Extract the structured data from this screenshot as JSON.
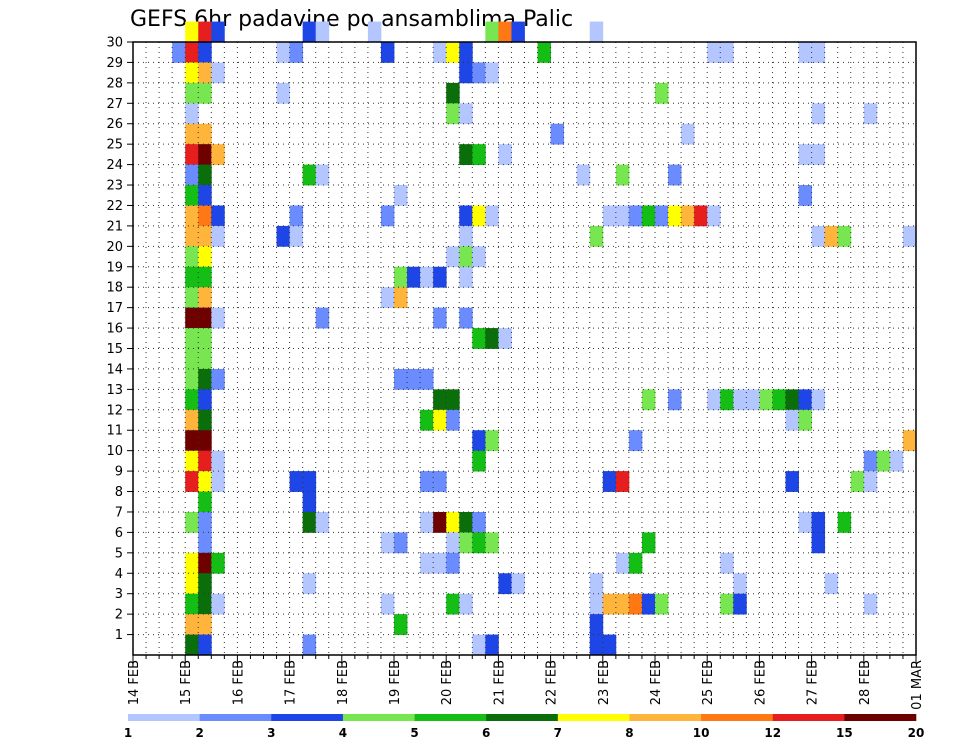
{
  "chart_data": {
    "type": "heatmap",
    "title": "GEFS 6hr padavine po ansamblima Palic",
    "y_ticks": [
      "1",
      "2",
      "3",
      "4",
      "5",
      "6",
      "7",
      "8",
      "9",
      "10",
      "11",
      "12",
      "13",
      "14",
      "15",
      "16",
      "17",
      "18",
      "19",
      "20",
      "21",
      "22",
      "23",
      "24",
      "25",
      "26",
      "27",
      "28",
      "29",
      "30"
    ],
    "x_labels": [
      "14 FEB",
      "15 FEB",
      "16 FEB",
      "17 FEB",
      "18 FEB",
      "19 FEB",
      "20 FEB",
      "21 FEB",
      "22 FEB",
      "23 FEB",
      "24 FEB",
      "25 FEB",
      "26 FEB",
      "27 FEB",
      "28 FEB",
      "01 MAR"
    ],
    "steps_per_day": 4,
    "total_steps": 60,
    "legend_labels": [
      "1",
      "2",
      "3",
      "4",
      "5",
      "6",
      "7",
      "8",
      "10",
      "12",
      "15",
      "20"
    ],
    "palette": [
      "#b4c6ff",
      "#6a8cff",
      "#1e46e6",
      "#78e650",
      "#14be14",
      "#0a6e0a",
      "#ffff00",
      "#ffb43c",
      "#ff7814",
      "#e61e1e",
      "#6e0000"
    ],
    "data_note": "cells: [member, time step (0 = 14 FEB 00z, 6h each), color class 0-10]",
    "cells": [
      [
        30,
        4,
        6
      ],
      [
        30,
        5,
        9
      ],
      [
        30,
        6,
        2
      ],
      [
        30,
        13,
        2
      ],
      [
        30,
        14,
        0
      ],
      [
        30,
        18,
        0
      ],
      [
        30,
        27,
        3
      ],
      [
        30,
        28,
        8
      ],
      [
        30,
        29,
        2
      ],
      [
        30,
        35,
        0
      ],
      [
        29,
        3,
        1
      ],
      [
        29,
        4,
        9
      ],
      [
        29,
        5,
        2
      ],
      [
        29,
        11,
        0
      ],
      [
        29,
        12,
        1
      ],
      [
        29,
        19,
        2
      ],
      [
        29,
        23,
        0
      ],
      [
        29,
        24,
        6
      ],
      [
        29,
        25,
        2
      ],
      [
        29,
        31,
        4
      ],
      [
        29,
        44,
        0
      ],
      [
        29,
        45,
        0
      ],
      [
        29,
        51,
        0
      ],
      [
        29,
        52,
        0
      ],
      [
        28,
        4,
        6
      ],
      [
        28,
        5,
        7
      ],
      [
        28,
        6,
        0
      ],
      [
        28,
        25,
        2
      ],
      [
        28,
        26,
        1
      ],
      [
        28,
        27,
        0
      ],
      [
        27,
        4,
        3
      ],
      [
        27,
        5,
        3
      ],
      [
        27,
        11,
        0
      ],
      [
        27,
        24,
        5
      ],
      [
        27,
        40,
        3
      ],
      [
        26,
        4,
        0
      ],
      [
        26,
        24,
        3
      ],
      [
        26,
        25,
        0
      ],
      [
        26,
        52,
        0
      ],
      [
        26,
        56,
        0
      ],
      [
        25,
        4,
        7
      ],
      [
        25,
        5,
        7
      ],
      [
        25,
        32,
        1
      ],
      [
        25,
        42,
        0
      ],
      [
        24,
        4,
        9
      ],
      [
        24,
        5,
        10
      ],
      [
        24,
        6,
        7
      ],
      [
        24,
        25,
        5
      ],
      [
        24,
        26,
        4
      ],
      [
        24,
        28,
        0
      ],
      [
        24,
        51,
        0
      ],
      [
        24,
        52,
        0
      ],
      [
        23,
        4,
        1
      ],
      [
        23,
        5,
        5
      ],
      [
        23,
        13,
        4
      ],
      [
        23,
        14,
        0
      ],
      [
        23,
        34,
        0
      ],
      [
        23,
        37,
        3
      ],
      [
        23,
        41,
        1
      ],
      [
        22,
        4,
        4
      ],
      [
        22,
        5,
        2
      ],
      [
        22,
        20,
        0
      ],
      [
        22,
        51,
        1
      ],
      [
        21,
        4,
        7
      ],
      [
        21,
        5,
        8
      ],
      [
        21,
        6,
        2
      ],
      [
        21,
        12,
        1
      ],
      [
        21,
        19,
        1
      ],
      [
        21,
        25,
        2
      ],
      [
        21,
        26,
        6
      ],
      [
        21,
        27,
        0
      ],
      [
        21,
        36,
        0
      ],
      [
        21,
        37,
        0
      ],
      [
        21,
        38,
        1
      ],
      [
        21,
        39,
        4
      ],
      [
        21,
        40,
        1
      ],
      [
        21,
        41,
        6
      ],
      [
        21,
        42,
        7
      ],
      [
        21,
        43,
        9
      ],
      [
        21,
        44,
        0
      ],
      [
        20,
        4,
        7
      ],
      [
        20,
        5,
        7
      ],
      [
        20,
        6,
        0
      ],
      [
        20,
        11,
        2
      ],
      [
        20,
        12,
        0
      ],
      [
        20,
        25,
        0
      ],
      [
        20,
        35,
        3
      ],
      [
        20,
        52,
        0
      ],
      [
        20,
        53,
        7
      ],
      [
        20,
        54,
        3
      ],
      [
        20,
        59,
        0
      ],
      [
        19,
        4,
        3
      ],
      [
        19,
        5,
        6
      ],
      [
        19,
        24,
        0
      ],
      [
        19,
        25,
        3
      ],
      [
        19,
        26,
        0
      ],
      [
        18,
        4,
        4
      ],
      [
        18,
        5,
        4
      ],
      [
        18,
        20,
        3
      ],
      [
        18,
        21,
        2
      ],
      [
        18,
        22,
        0
      ],
      [
        18,
        23,
        2
      ],
      [
        18,
        25,
        0
      ],
      [
        17,
        4,
        3
      ],
      [
        17,
        5,
        7
      ],
      [
        17,
        19,
        0
      ],
      [
        17,
        20,
        7
      ],
      [
        16,
        4,
        10
      ],
      [
        16,
        5,
        10
      ],
      [
        16,
        6,
        0
      ],
      [
        16,
        14,
        1
      ],
      [
        16,
        23,
        1
      ],
      [
        16,
        25,
        1
      ],
      [
        15,
        4,
        3
      ],
      [
        15,
        5,
        3
      ],
      [
        15,
        26,
        4
      ],
      [
        15,
        27,
        5
      ],
      [
        15,
        28,
        0
      ],
      [
        14,
        4,
        3
      ],
      [
        14,
        5,
        3
      ],
      [
        13,
        4,
        3
      ],
      [
        13,
        5,
        5
      ],
      [
        13,
        6,
        1
      ],
      [
        13,
        20,
        1
      ],
      [
        13,
        21,
        1
      ],
      [
        13,
        22,
        1
      ],
      [
        12,
        4,
        4
      ],
      [
        12,
        5,
        2
      ],
      [
        12,
        23,
        5
      ],
      [
        12,
        24,
        5
      ],
      [
        12,
        39,
        3
      ],
      [
        12,
        41,
        1
      ],
      [
        12,
        44,
        0
      ],
      [
        12,
        45,
        4
      ],
      [
        12,
        46,
        0
      ],
      [
        12,
        47,
        0
      ],
      [
        12,
        48,
        3
      ],
      [
        12,
        49,
        4
      ],
      [
        12,
        50,
        5
      ],
      [
        12,
        51,
        2
      ],
      [
        12,
        52,
        0
      ],
      [
        11,
        4,
        7
      ],
      [
        11,
        5,
        5
      ],
      [
        11,
        22,
        4
      ],
      [
        11,
        23,
        6
      ],
      [
        11,
        24,
        1
      ],
      [
        11,
        50,
        0
      ],
      [
        11,
        51,
        3
      ],
      [
        10,
        4,
        10
      ],
      [
        10,
        5,
        10
      ],
      [
        10,
        26,
        2
      ],
      [
        10,
        27,
        3
      ],
      [
        10,
        38,
        1
      ],
      [
        10,
        59,
        7
      ],
      [
        9,
        4,
        6
      ],
      [
        9,
        5,
        9
      ],
      [
        9,
        6,
        0
      ],
      [
        9,
        26,
        4
      ],
      [
        9,
        56,
        1
      ],
      [
        9,
        57,
        3
      ],
      [
        9,
        58,
        0
      ],
      [
        8,
        4,
        9
      ],
      [
        8,
        5,
        6
      ],
      [
        8,
        6,
        0
      ],
      [
        8,
        12,
        2
      ],
      [
        8,
        13,
        2
      ],
      [
        8,
        22,
        1
      ],
      [
        8,
        23,
        1
      ],
      [
        8,
        36,
        2
      ],
      [
        8,
        37,
        9
      ],
      [
        8,
        50,
        2
      ],
      [
        8,
        55,
        3
      ],
      [
        8,
        56,
        0
      ],
      [
        7,
        5,
        4
      ],
      [
        7,
        13,
        2
      ],
      [
        6,
        4,
        3
      ],
      [
        6,
        5,
        1
      ],
      [
        6,
        13,
        5
      ],
      [
        6,
        14,
        0
      ],
      [
        6,
        22,
        0
      ],
      [
        6,
        23,
        10
      ],
      [
        6,
        24,
        6
      ],
      [
        6,
        25,
        5
      ],
      [
        6,
        26,
        1
      ],
      [
        6,
        51,
        0
      ],
      [
        6,
        52,
        2
      ],
      [
        6,
        54,
        4
      ],
      [
        5,
        5,
        1
      ],
      [
        5,
        19,
        0
      ],
      [
        5,
        20,
        1
      ],
      [
        5,
        24,
        0
      ],
      [
        5,
        25,
        3
      ],
      [
        5,
        26,
        4
      ],
      [
        5,
        27,
        3
      ],
      [
        5,
        39,
        4
      ],
      [
        5,
        52,
        2
      ],
      [
        4,
        4,
        6
      ],
      [
        4,
        5,
        10
      ],
      [
        4,
        6,
        4
      ],
      [
        4,
        22,
        0
      ],
      [
        4,
        23,
        0
      ],
      [
        4,
        24,
        1
      ],
      [
        4,
        37,
        0
      ],
      [
        4,
        38,
        4
      ],
      [
        4,
        45,
        0
      ],
      [
        3,
        4,
        6
      ],
      [
        3,
        5,
        5
      ],
      [
        3,
        13,
        0
      ],
      [
        3,
        28,
        2
      ],
      [
        3,
        29,
        0
      ],
      [
        3,
        35,
        0
      ],
      [
        3,
        46,
        0
      ],
      [
        3,
        53,
        0
      ],
      [
        2,
        4,
        4
      ],
      [
        2,
        5,
        5
      ],
      [
        2,
        6,
        0
      ],
      [
        2,
        19,
        0
      ],
      [
        2,
        24,
        4
      ],
      [
        2,
        25,
        0
      ],
      [
        2,
        35,
        0
      ],
      [
        2,
        36,
        7
      ],
      [
        2,
        37,
        7
      ],
      [
        2,
        38,
        8
      ],
      [
        2,
        39,
        2
      ],
      [
        2,
        40,
        3
      ],
      [
        2,
        45,
        3
      ],
      [
        2,
        46,
        2
      ],
      [
        2,
        56,
        0
      ],
      [
        1,
        4,
        7
      ],
      [
        1,
        5,
        7
      ],
      [
        1,
        20,
        4
      ],
      [
        1,
        35,
        2
      ],
      [
        0,
        4,
        5
      ],
      [
        0,
        5,
        2
      ],
      [
        0,
        13,
        1
      ],
      [
        0,
        26,
        0
      ],
      [
        0,
        27,
        2
      ],
      [
        0,
        35,
        2
      ],
      [
        0,
        36,
        2
      ]
    ]
  }
}
